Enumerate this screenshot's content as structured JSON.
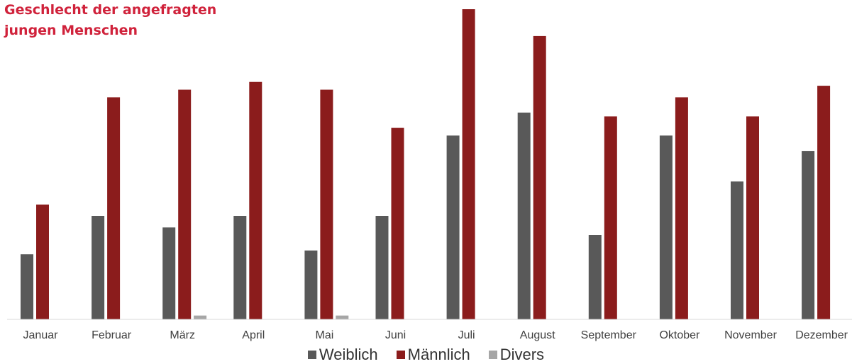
{
  "title_lines": [
    "Geschlecht der angefragten",
    "jungen Menschen"
  ],
  "colors": {
    "title": "#d0223b",
    "weiblich": "#595959",
    "maennlich": "#8b1c1c",
    "divers": "#a6a6a6",
    "axis": "#d9d9d9",
    "label": "#404040"
  },
  "chart_data": {
    "type": "bar",
    "title": "Geschlecht der angefragten jungen Menschen",
    "categories": [
      "Januar",
      "Februar",
      "März",
      "April",
      "Mai",
      "Juni",
      "Juli",
      "August",
      "September",
      "Oktober",
      "November",
      "Dezember"
    ],
    "series": [
      {
        "name": "Weiblich",
        "color": "#595959",
        "values": [
          17,
          27,
          24,
          27,
          18,
          27,
          48,
          54,
          22,
          48,
          36,
          44
        ]
      },
      {
        "name": "Männlich",
        "color": "#8b1c1c",
        "values": [
          30,
          58,
          60,
          62,
          60,
          50,
          81,
          74,
          53,
          58,
          53,
          61
        ]
      },
      {
        "name": "Divers",
        "color": "#a6a6a6",
        "values": [
          0,
          1,
          0,
          1,
          0,
          0,
          0,
          0,
          0,
          0,
          0,
          0
        ]
      }
    ],
    "ylim": [
      0,
      81
    ],
    "grid": false,
    "legend_position": "bottom"
  }
}
